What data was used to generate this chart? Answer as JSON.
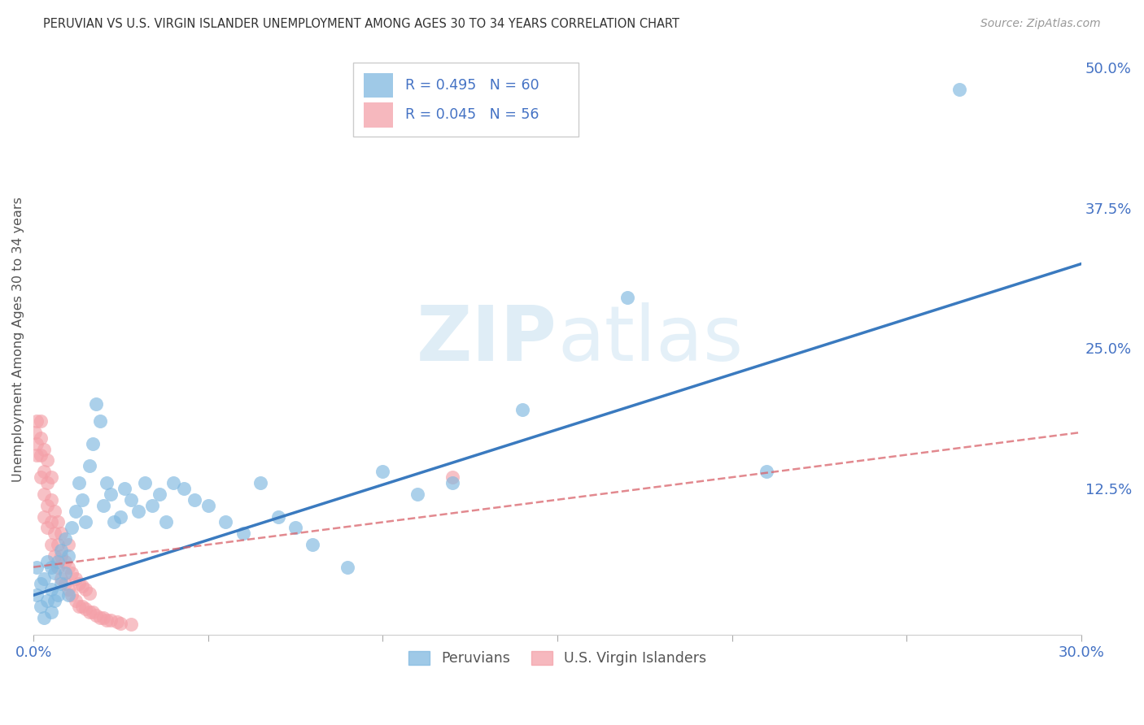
{
  "title": "PERUVIAN VS U.S. VIRGIN ISLANDER UNEMPLOYMENT AMONG AGES 30 TO 34 YEARS CORRELATION CHART",
  "source": "Source: ZipAtlas.com",
  "ylabel": "Unemployment Among Ages 30 to 34 years",
  "xlim": [
    0.0,
    0.3
  ],
  "ylim": [
    -0.005,
    0.52
  ],
  "yticks": [
    0.0,
    0.125,
    0.25,
    0.375,
    0.5
  ],
  "yticklabels": [
    "",
    "12.5%",
    "25.0%",
    "37.5%",
    "50.0%"
  ],
  "grid_color": "#cccccc",
  "background_color": "#ffffff",
  "peruvian_color": "#7fb8e0",
  "virgin_islander_color": "#f4a0a8",
  "peruvian_R": 0.495,
  "peruvian_N": 60,
  "virgin_islander_R": 0.045,
  "virgin_islander_N": 56,
  "peruvian_line_color": "#3a7abf",
  "virgin_islander_line_color": "#d9626a",
  "peru_line_x0": 0.0,
  "peru_line_y0": 0.03,
  "peru_line_x1": 0.3,
  "peru_line_y1": 0.325,
  "vi_line_x0": 0.0,
  "vi_line_y0": 0.055,
  "vi_line_x1": 0.3,
  "vi_line_y1": 0.175,
  "peruvian_scatter_x": [
    0.001,
    0.001,
    0.002,
    0.002,
    0.003,
    0.003,
    0.004,
    0.004,
    0.005,
    0.005,
    0.005,
    0.006,
    0.006,
    0.007,
    0.007,
    0.008,
    0.008,
    0.009,
    0.009,
    0.01,
    0.01,
    0.011,
    0.012,
    0.013,
    0.014,
    0.015,
    0.016,
    0.017,
    0.018,
    0.019,
    0.02,
    0.021,
    0.022,
    0.023,
    0.025,
    0.026,
    0.028,
    0.03,
    0.032,
    0.034,
    0.036,
    0.038,
    0.04,
    0.043,
    0.046,
    0.05,
    0.055,
    0.06,
    0.065,
    0.07,
    0.075,
    0.08,
    0.09,
    0.1,
    0.11,
    0.12,
    0.14,
    0.17,
    0.21,
    0.265
  ],
  "peruvian_scatter_y": [
    0.03,
    0.055,
    0.02,
    0.04,
    0.01,
    0.045,
    0.025,
    0.06,
    0.015,
    0.035,
    0.055,
    0.025,
    0.05,
    0.03,
    0.06,
    0.04,
    0.07,
    0.05,
    0.08,
    0.03,
    0.065,
    0.09,
    0.105,
    0.13,
    0.115,
    0.095,
    0.145,
    0.165,
    0.2,
    0.185,
    0.11,
    0.13,
    0.12,
    0.095,
    0.1,
    0.125,
    0.115,
    0.105,
    0.13,
    0.11,
    0.12,
    0.095,
    0.13,
    0.125,
    0.115,
    0.11,
    0.095,
    0.085,
    0.13,
    0.1,
    0.09,
    0.075,
    0.055,
    0.14,
    0.12,
    0.13,
    0.195,
    0.295,
    0.14,
    0.48
  ],
  "virgin_islander_scatter_x": [
    0.0005,
    0.001,
    0.001,
    0.001,
    0.002,
    0.002,
    0.002,
    0.002,
    0.003,
    0.003,
    0.003,
    0.003,
    0.004,
    0.004,
    0.004,
    0.004,
    0.005,
    0.005,
    0.005,
    0.005,
    0.006,
    0.006,
    0.006,
    0.007,
    0.007,
    0.007,
    0.008,
    0.008,
    0.008,
    0.009,
    0.009,
    0.01,
    0.01,
    0.01,
    0.011,
    0.011,
    0.012,
    0.012,
    0.013,
    0.013,
    0.014,
    0.014,
    0.015,
    0.015,
    0.016,
    0.016,
    0.017,
    0.018,
    0.019,
    0.02,
    0.021,
    0.022,
    0.024,
    0.025,
    0.028,
    0.12
  ],
  "virgin_islander_scatter_y": [
    0.175,
    0.155,
    0.165,
    0.185,
    0.135,
    0.155,
    0.17,
    0.185,
    0.1,
    0.12,
    0.14,
    0.16,
    0.09,
    0.11,
    0.13,
    0.15,
    0.075,
    0.095,
    0.115,
    0.135,
    0.065,
    0.085,
    0.105,
    0.055,
    0.075,
    0.095,
    0.045,
    0.065,
    0.085,
    0.04,
    0.06,
    0.035,
    0.055,
    0.075,
    0.03,
    0.05,
    0.025,
    0.045,
    0.02,
    0.04,
    0.02,
    0.038,
    0.018,
    0.035,
    0.015,
    0.032,
    0.015,
    0.012,
    0.01,
    0.01,
    0.008,
    0.008,
    0.006,
    0.005,
    0.004,
    0.135
  ]
}
